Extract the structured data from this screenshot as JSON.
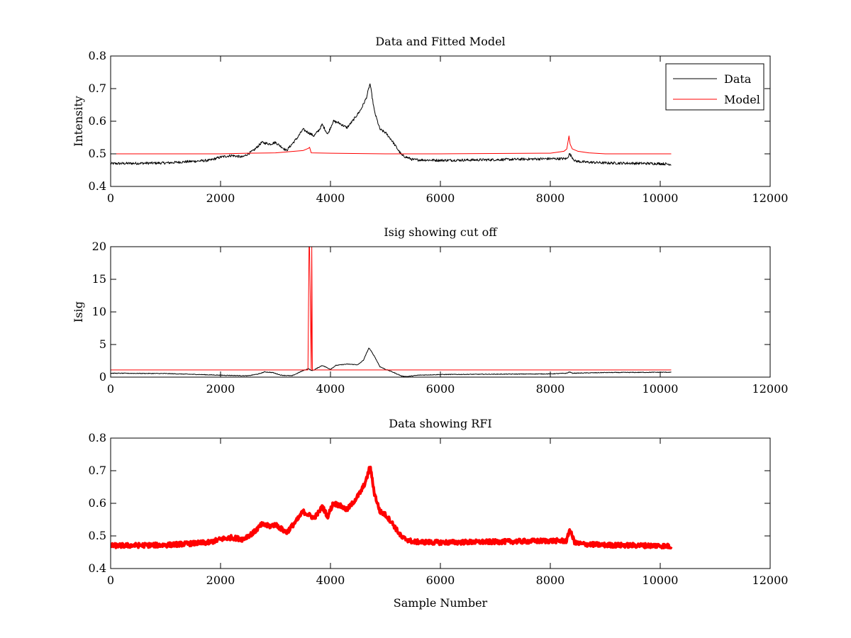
{
  "figure": {
    "background": "#ffffff"
  },
  "chart_data": [
    {
      "type": "line",
      "title": "Data and Fitted Model",
      "xlabel": "",
      "ylabel": "Intensity",
      "xlim": [
        0,
        12000
      ],
      "ylim": [
        0.4,
        0.8
      ],
      "xticks": [
        0,
        2000,
        4000,
        6000,
        8000,
        10000,
        12000
      ],
      "yticks": [
        0.4,
        0.5,
        0.6,
        0.7,
        0.8
      ],
      "xtick_labels": [
        "0",
        "2000",
        "4000",
        "6000",
        "8000",
        "10000",
        "12000"
      ],
      "ytick_labels": [
        "0.4",
        "0.5",
        "0.6",
        "0.7",
        "0.8"
      ],
      "grid": false,
      "legend": {
        "position": "top-right",
        "entries": [
          "Data",
          "Model"
        ]
      },
      "series": [
        {
          "name": "Data",
          "color": "#000000",
          "noise": 0.004,
          "x": [
            0,
            1000,
            1800,
            2000,
            2200,
            2400,
            2600,
            2750,
            2900,
            3000,
            3200,
            3400,
            3500,
            3600,
            3700,
            3800,
            3850,
            3950,
            4050,
            4150,
            4300,
            4400,
            4550,
            4650,
            4720,
            4800,
            4900,
            5000,
            5100,
            5200,
            5300,
            5500,
            6000,
            7000,
            8000,
            8300,
            8350,
            8450,
            8600,
            9000,
            10000,
            10200
          ],
          "y": [
            0.47,
            0.472,
            0.48,
            0.49,
            0.495,
            0.49,
            0.51,
            0.535,
            0.53,
            0.535,
            0.51,
            0.55,
            0.575,
            0.565,
            0.555,
            0.575,
            0.59,
            0.56,
            0.6,
            0.595,
            0.58,
            0.6,
            0.635,
            0.67,
            0.715,
            0.63,
            0.575,
            0.565,
            0.545,
            0.52,
            0.495,
            0.482,
            0.48,
            0.482,
            0.485,
            0.485,
            0.5,
            0.478,
            0.475,
            0.472,
            0.47,
            0.468
          ]
        },
        {
          "name": "Model",
          "color": "#ff0000",
          "noise": 0,
          "x": [
            0,
            2000,
            2500,
            3000,
            3500,
            3600,
            3620,
            3650,
            4000,
            5000,
            6000,
            8000,
            8250,
            8300,
            8340,
            8360,
            8400,
            8500,
            8700,
            9000,
            10200
          ],
          "y": [
            0.5,
            0.5,
            0.502,
            0.503,
            0.51,
            0.517,
            0.52,
            0.503,
            0.502,
            0.5,
            0.5,
            0.502,
            0.508,
            0.515,
            0.555,
            0.53,
            0.515,
            0.508,
            0.503,
            0.5,
            0.5
          ]
        }
      ]
    },
    {
      "type": "line",
      "title": "Isig showing cut off",
      "xlabel": "",
      "ylabel": "Isig",
      "xlim": [
        0,
        12000
      ],
      "ylim": [
        0,
        20
      ],
      "xticks": [
        0,
        2000,
        4000,
        6000,
        8000,
        10000,
        12000
      ],
      "yticks": [
        0,
        5,
        10,
        15,
        20
      ],
      "xtick_labels": [
        "0",
        "2000",
        "4000",
        "6000",
        "8000",
        "10000",
        "12000"
      ],
      "ytick_labels": [
        "0",
        "5",
        "10",
        "15",
        "20"
      ],
      "grid": false,
      "series": [
        {
          "color": "#000000",
          "noise": 0.05,
          "x": [
            0,
            1000,
            2000,
            2500,
            2700,
            2800,
            2950,
            3100,
            3300,
            3500,
            3600,
            3650,
            3700,
            3850,
            4000,
            4100,
            4300,
            4500,
            4600,
            4700,
            4800,
            4900,
            5000,
            5100,
            5300,
            5400,
            5600,
            6000,
            8000,
            8300,
            8350,
            8400,
            9000,
            10200
          ],
          "y": [
            0.6,
            0.55,
            0.3,
            0.2,
            0.5,
            0.8,
            0.7,
            0.3,
            0.2,
            1.0,
            1.3,
            1.0,
            1.1,
            1.8,
            1.2,
            1.8,
            2.0,
            1.9,
            2.6,
            4.5,
            3.2,
            1.6,
            1.2,
            0.9,
            0.15,
            0.1,
            0.3,
            0.4,
            0.5,
            0.6,
            0.8,
            0.6,
            0.7,
            0.75
          ]
        },
        {
          "color": "#ff0000",
          "noise": 0,
          "x": [
            0,
            3580,
            3590,
            3610,
            3620,
            3650,
            3660,
            3670,
            10200
          ],
          "y": [
            1.1,
            1.1,
            1.1,
            20,
            20,
            1.1,
            20,
            1.1,
            1.1
          ]
        }
      ]
    },
    {
      "type": "line",
      "title": "Data showing RFI",
      "xlabel": "Sample Number",
      "ylabel": "",
      "xlim": [
        0,
        12000
      ],
      "ylim": [
        0.4,
        0.8
      ],
      "xticks": [
        0,
        2000,
        4000,
        6000,
        8000,
        10000,
        12000
      ],
      "yticks": [
        0.4,
        0.5,
        0.6,
        0.7,
        0.8
      ],
      "xtick_labels": [
        "0",
        "2000",
        "4000",
        "6000",
        "8000",
        "10000",
        "12000"
      ],
      "ytick_labels": [
        "0.4",
        "0.5",
        "0.6",
        "0.7",
        "0.8"
      ],
      "grid": false,
      "series": [
        {
          "color": "#ff0000",
          "noise": 0.007,
          "x": [
            0,
            1000,
            1800,
            2000,
            2200,
            2400,
            2600,
            2750,
            2900,
            3000,
            3200,
            3400,
            3500,
            3600,
            3700,
            3800,
            3850,
            3950,
            4050,
            4150,
            4300,
            4400,
            4550,
            4650,
            4720,
            4800,
            4900,
            5000,
            5100,
            5200,
            5300,
            5500,
            6000,
            7000,
            8000,
            8300,
            8350,
            8450,
            8600,
            9000,
            10000,
            10200
          ],
          "y": [
            0.47,
            0.472,
            0.48,
            0.49,
            0.495,
            0.49,
            0.51,
            0.535,
            0.53,
            0.535,
            0.51,
            0.55,
            0.575,
            0.565,
            0.555,
            0.575,
            0.59,
            0.56,
            0.6,
            0.595,
            0.58,
            0.6,
            0.635,
            0.67,
            0.715,
            0.63,
            0.575,
            0.565,
            0.545,
            0.52,
            0.495,
            0.482,
            0.48,
            0.482,
            0.485,
            0.485,
            0.52,
            0.478,
            0.475,
            0.472,
            0.47,
            0.468
          ]
        }
      ]
    }
  ]
}
